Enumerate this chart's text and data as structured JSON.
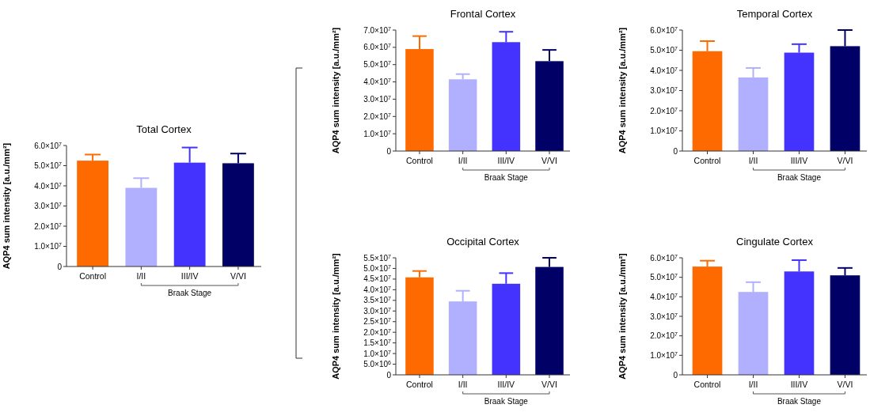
{
  "chart_data": [
    {
      "type": "bar",
      "title": "Total Cortex",
      "ylabel": "AQP4 sum intensity [a.u./mm²]",
      "categories": [
        "Control",
        "I/II",
        "III/IV",
        "V/VI"
      ],
      "colors": [
        "#ff6a00",
        "#b0b0ff",
        "#4433ff",
        "#000066"
      ],
      "values": [
        52500000,
        39000000,
        51500000,
        51200000
      ],
      "errors": [
        [
          52500000,
          55500000
        ],
        [
          39000000,
          43800000
        ],
        [
          51500000,
          59000000
        ],
        [
          51200000,
          56000000
        ]
      ],
      "ylim": [
        0,
        60000000
      ],
      "yticks": [
        {
          "value": 0,
          "label": "0"
        },
        {
          "value": 10000000,
          "label": "1.0×10$^{7}$"
        },
        {
          "value": 20000000,
          "label": "2.0×10$^{7}$"
        },
        {
          "value": 30000000,
          "label": "3.0×10$^{7}$"
        },
        {
          "value": 40000000,
          "label": "4.0×10$^{7}$"
        },
        {
          "value": 50000000,
          "label": "5.0×10$^{7}$"
        },
        {
          "value": 60000000,
          "label": "6.0×10$^{7}$"
        }
      ],
      "annotations": [
        "Braak Stage"
      ]
    },
    {
      "type": "bar",
      "title": "Frontal Cortex",
      "ylabel": "AQP4 sum intensity [a.u./mm²]",
      "categories": [
        "Control",
        "I/II",
        "III/IV",
        "V/VI"
      ],
      "colors": [
        "#ff6a00",
        "#b0b0ff",
        "#4433ff",
        "#000066"
      ],
      "values": [
        59000000,
        41500000,
        63000000,
        52000000
      ],
      "errors": [
        [
          59000000,
          66500000
        ],
        [
          41500000,
          44500000
        ],
        [
          63000000,
          69000000
        ],
        [
          52000000,
          58500000
        ]
      ],
      "ylim": [
        0,
        70000000
      ],
      "yticks": [
        {
          "value": 0,
          "label": "0"
        },
        {
          "value": 10000000,
          "label": "1.0×10$^{7}$"
        },
        {
          "value": 20000000,
          "label": "2.0×10$^{7}$"
        },
        {
          "value": 30000000,
          "label": "3.0×10$^{7}$"
        },
        {
          "value": 40000000,
          "label": "4.0×10$^{7}$"
        },
        {
          "value": 50000000,
          "label": "5.0×10$^{7}$"
        },
        {
          "value": 60000000,
          "label": "6.0×10$^{7}$"
        },
        {
          "value": 70000000,
          "label": "7.0×10$^{7}$"
        }
      ],
      "annotations": [
        "Braak Stage"
      ]
    },
    {
      "type": "bar",
      "title": "Temporal Cortex",
      "ylabel": "AQP4 sum intensity [a.u./mm²]",
      "categories": [
        "Control",
        "I/II",
        "III/IV",
        "V/VI"
      ],
      "colors": [
        "#ff6a00",
        "#b0b0ff",
        "#4433ff",
        "#000066"
      ],
      "values": [
        49500000,
        36500000,
        48800000,
        52000000
      ],
      "errors": [
        [
          49500000,
          54500000
        ],
        [
          36500000,
          41200000
        ],
        [
          48800000,
          53000000
        ],
        [
          52000000,
          60000000
        ]
      ],
      "ylim": [
        0,
        60000000
      ],
      "yticks": [
        {
          "value": 0,
          "label": "0"
        },
        {
          "value": 10000000,
          "label": "1.0×10$^{7}$"
        },
        {
          "value": 20000000,
          "label": "2.0×10$^{7}$"
        },
        {
          "value": 30000000,
          "label": "3.0×10$^{7}$"
        },
        {
          "value": 40000000,
          "label": "4.0×10$^{7}$"
        },
        {
          "value": 50000000,
          "label": "5.0×10$^{7}$"
        },
        {
          "value": 60000000,
          "label": "6.0×10$^{7}$"
        }
      ],
      "annotations": [
        "Braak Stage"
      ]
    },
    {
      "type": "bar",
      "title": "Occipital Cortex",
      "ylabel": "AQP4 sum intensity [a.u./mm²]",
      "categories": [
        "Control",
        "I/II",
        "III/IV",
        "V/VI"
      ],
      "colors": [
        "#ff6a00",
        "#b0b0ff",
        "#4433ff",
        "#000066"
      ],
      "values": [
        45800000,
        34500000,
        42800000,
        50700000
      ],
      "errors": [
        [
          45800000,
          48800000
        ],
        [
          34500000,
          39500000
        ],
        [
          42800000,
          47800000
        ],
        [
          50700000,
          55000000
        ]
      ],
      "ylim": [
        0,
        55000000
      ],
      "yticks": [
        {
          "value": 0,
          "label": "0"
        },
        {
          "value": 5000000,
          "label": "5.0×10$^{6}$"
        },
        {
          "value": 10000000,
          "label": "1.0×10$^{7}$"
        },
        {
          "value": 15000000,
          "label": "1.5×10$^{7}$"
        },
        {
          "value": 20000000,
          "label": "2.0×10$^{7}$"
        },
        {
          "value": 25000000,
          "label": "2.5×10$^{7}$"
        },
        {
          "value": 30000000,
          "label": "3.0×10$^{7}$"
        },
        {
          "value": 35000000,
          "label": "3.5×10$^{7}$"
        },
        {
          "value": 40000000,
          "label": "4.0×10$^{7}$"
        },
        {
          "value": 45000000,
          "label": "4.5×10$^{7}$"
        },
        {
          "value": 50000000,
          "label": "5.0×10$^{7}$"
        },
        {
          "value": 55000000,
          "label": "5.5×10$^{7}$"
        }
      ],
      "annotations": [
        "Braak Stage"
      ]
    },
    {
      "type": "bar",
      "title": "Cingulate Cortex",
      "ylabel": "AQP4 sum intensity [a.u./mm²]",
      "categories": [
        "Control",
        "I/II",
        "III/IV",
        "V/VI"
      ],
      "colors": [
        "#ff6a00",
        "#b0b0ff",
        "#4433ff",
        "#000066"
      ],
      "values": [
        55500000,
        42500000,
        53000000,
        51000000
      ],
      "errors": [
        [
          55500000,
          58500000
        ],
        [
          42500000,
          47500000
        ],
        [
          53000000,
          58800000
        ],
        [
          51000000,
          54800000
        ]
      ],
      "ylim": [
        0,
        60000000
      ],
      "yticks": [
        {
          "value": 0,
          "label": "0"
        },
        {
          "value": 10000000,
          "label": "1.0×10$^{7}$"
        },
        {
          "value": 20000000,
          "label": "2.0×10$^{7}$"
        },
        {
          "value": 30000000,
          "label": "3.0×10$^{7}$"
        },
        {
          "value": 40000000,
          "label": "4.0×10$^{7}$"
        },
        {
          "value": 50000000,
          "label": "5.0×10$^{7}$"
        },
        {
          "value": 60000000,
          "label": "6.0×10$^{7}$"
        }
      ],
      "annotations": [
        "Braak Stage"
      ]
    }
  ]
}
